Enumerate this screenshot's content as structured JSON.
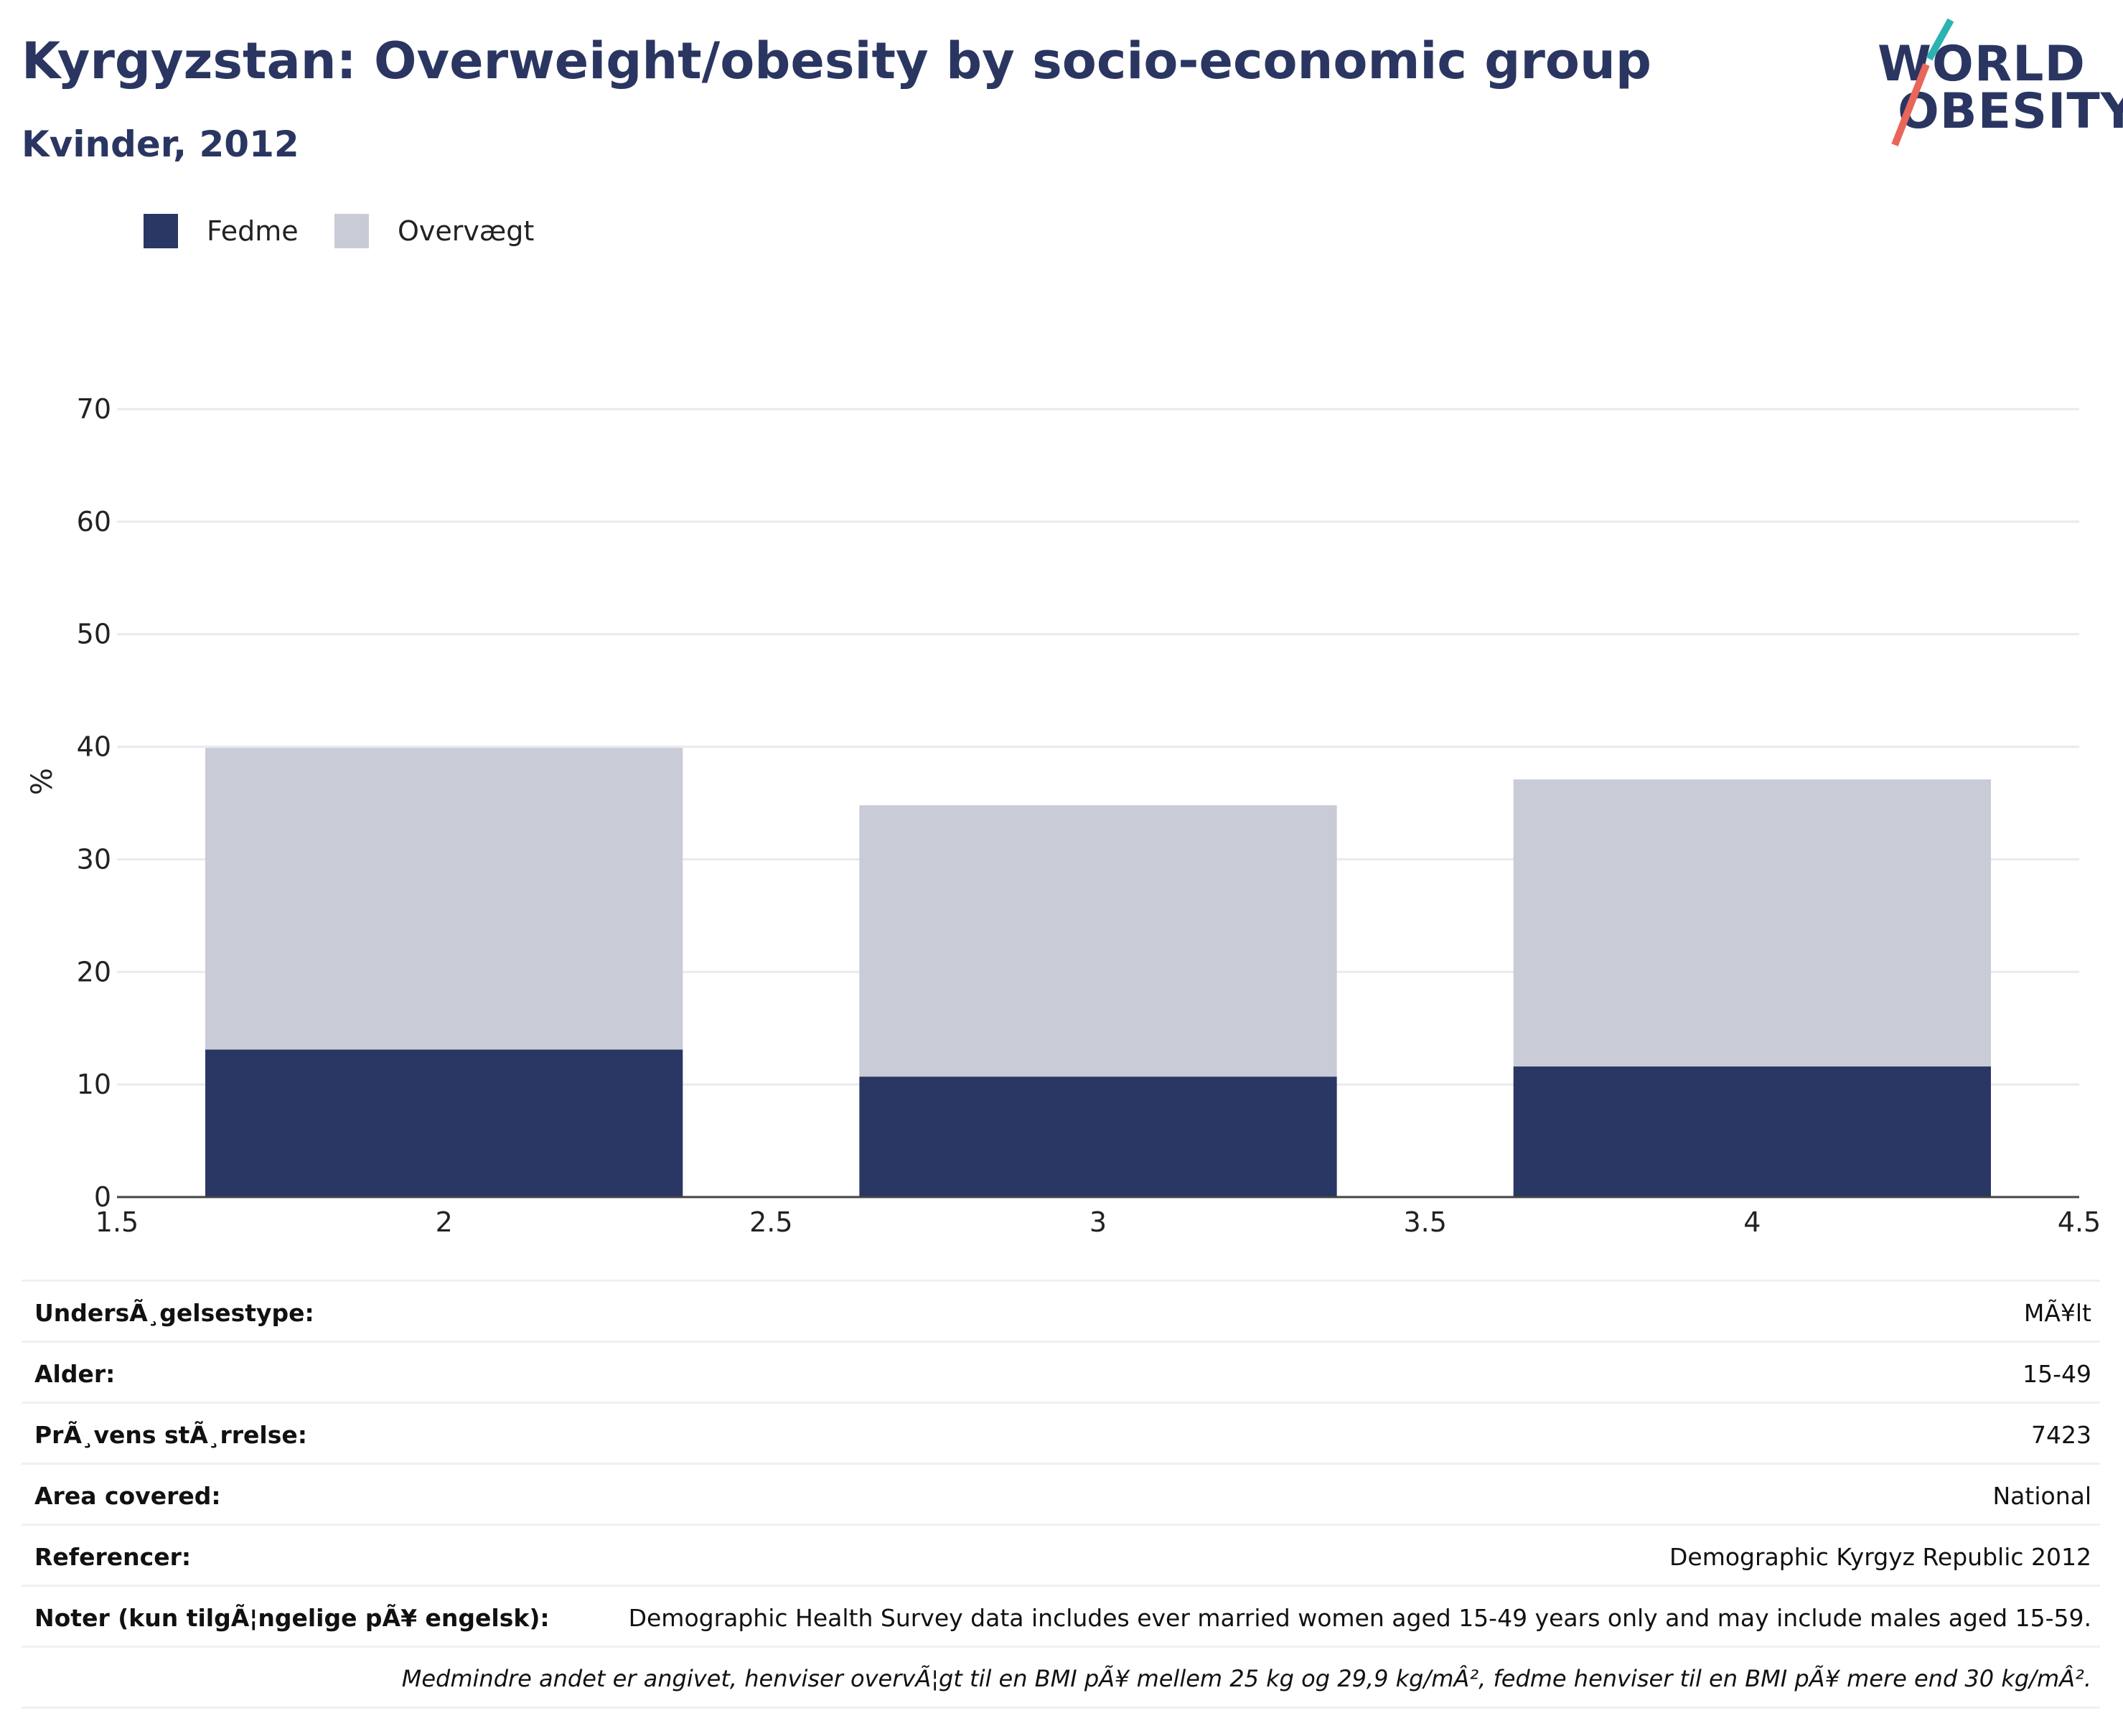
{
  "header": {
    "title": "Kyrgyzstan: Overweight/obesity by socio-economic group",
    "subtitle": "Kvinder, 2012"
  },
  "logo": {
    "line1": "WORLD",
    "line2": "OBESITY"
  },
  "colors": {
    "fedme": "#2a3663",
    "overvaegt": "#c9ccd7",
    "title": "#2a3661",
    "logo_teal": "#2ab3b1",
    "logo_red": "#e8675a"
  },
  "chart_data": {
    "type": "bar",
    "stacked": true,
    "x": [
      2,
      3,
      4
    ],
    "series": [
      {
        "name": "Fedme",
        "values": [
          13.1,
          10.7,
          11.6
        ]
      },
      {
        "name": "Overvægt",
        "values": [
          26.8,
          24.1,
          25.5
        ]
      }
    ],
    "xlim": [
      1.5,
      4.5
    ],
    "ylim": [
      0,
      70
    ],
    "xticks": [
      "1.5",
      "2",
      "2.5",
      "3",
      "3.5",
      "4",
      "4.5"
    ],
    "yticks": [
      "0",
      "10",
      "20",
      "30",
      "40",
      "50",
      "60",
      "70"
    ],
    "ylabel": "%",
    "grid": true,
    "legend_position": "top-left"
  },
  "info": [
    {
      "label": "UndersÃ¸gelsestype:",
      "value": "MÃ¥lt"
    },
    {
      "label": "Alder:",
      "value": "15-49"
    },
    {
      "label": "PrÃ¸vens stÃ¸rrelse:",
      "value": "7423"
    },
    {
      "label": "Area covered:",
      "value": "National"
    },
    {
      "label": "Referencer:",
      "value": "Demographic Kyrgyz Republic 2012"
    },
    {
      "label": "Noter (kun tilgÃ¦ngelige pÃ¥ engelsk):",
      "value": "Demographic Health Survey data includes ever married women aged 15-49 years only and may include males aged 15-59."
    }
  ],
  "footnote": "Medmindre andet er angivet, henviser overvÃ¦gt til en BMI pÃ¥ mellem 25 kg og 29,9 kg/mÂ², fedme henviser til en BMI pÃ¥ mere end 30 kg/mÂ²."
}
